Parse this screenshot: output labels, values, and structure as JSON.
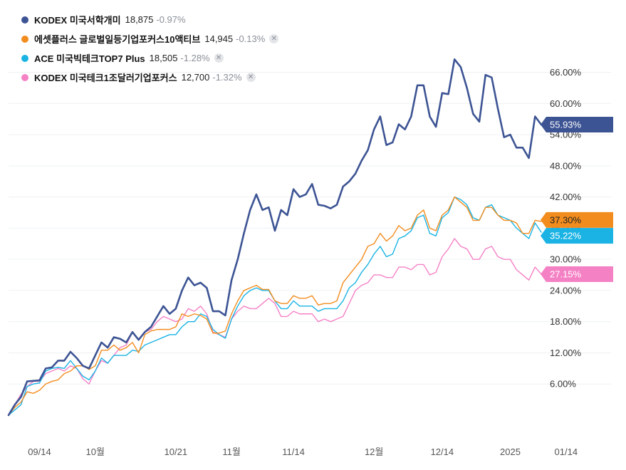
{
  "legend": [
    {
      "name": "KODEX 미국서학개미",
      "price": "18,875",
      "change": "-0.97%",
      "color": "#3d5494",
      "removable": false
    },
    {
      "name": "에셋플러스 글로벌일등기업포커스10액티브",
      "price": "14,945",
      "change": "-0.13%",
      "color": "#f28c1e",
      "removable": true
    },
    {
      "name": "ACE 미국빅테크TOP7 Plus",
      "price": "18,505",
      "change": "-1.28%",
      "color": "#1ab3e4",
      "removable": true
    },
    {
      "name": "KODEX 미국테크1조달러기업포커스",
      "price": "12,700",
      "change": "-1.32%",
      "color": "#f581c5",
      "removable": true
    }
  ],
  "chart_data": {
    "type": "line",
    "title": "",
    "xlabel": "",
    "ylabel": "",
    "ylim": [
      0,
      70
    ],
    "y_ticks": [
      6,
      12,
      18,
      24,
      30,
      36,
      42,
      48,
      54,
      60,
      66
    ],
    "y_tick_labels": [
      "6.00%",
      "12.00%",
      "18.00%",
      "24.00%",
      "30.00%",
      "36.00%",
      "42.00%",
      "48.00%",
      "54.00%",
      "60.00%",
      "66.00%"
    ],
    "x_tick_labels": [
      {
        "index": 5,
        "label": "09/14"
      },
      {
        "index": 14,
        "label": "10월"
      },
      {
        "index": 27,
        "label": "10/21"
      },
      {
        "index": 36,
        "label": "11월"
      },
      {
        "index": 46,
        "label": "11/14"
      },
      {
        "index": 59,
        "label": "12월"
      },
      {
        "index": 70,
        "label": "12/14"
      },
      {
        "index": 81,
        "label": "2025"
      },
      {
        "index": 90,
        "label": "01/14"
      }
    ],
    "grid": true,
    "legend_position": "top-left",
    "series": [
      {
        "name": "KODEX 미국서학개미",
        "color": "#3d5494",
        "end_label": "55.93%",
        "values": [
          0,
          2,
          3.5,
          6.5,
          6.6,
          6.7,
          9,
          9.2,
          10.5,
          10.5,
          12.2,
          11,
          9.5,
          9,
          11.5,
          14,
          13,
          15,
          14.7,
          14,
          16,
          14.5,
          16,
          17,
          19,
          21,
          19.5,
          20.5,
          24,
          26.5,
          25,
          25.5,
          24.5,
          20,
          20,
          19.2,
          26,
          30,
          35,
          39.5,
          42.5,
          39.5,
          40,
          35.5,
          39.5,
          38.5,
          43.5,
          42,
          42.5,
          44.5,
          40.5,
          40.3,
          39.8,
          40.5,
          44,
          45,
          46.5,
          49,
          51,
          55,
          57.5,
          52,
          52.5,
          56,
          55,
          57.5,
          63.5,
          63.5,
          57.5,
          55.5,
          62,
          61.8,
          68.5,
          67,
          63,
          58,
          56.5,
          65.5,
          65,
          59,
          53.5,
          54,
          51.5,
          51.5,
          49.5,
          57.5,
          55.93
        ]
      },
      {
        "name": "에셋플러스 글로벌일등기업포커스10액티브",
        "color": "#f28c1e",
        "end_label": "37.30%",
        "values": [
          0,
          1.5,
          2.5,
          4.5,
          4.2,
          4.8,
          6,
          6.5,
          6.8,
          8,
          8.5,
          9.5,
          9.5,
          8.8,
          9.5,
          12.5,
          12.5,
          13.5,
          12.5,
          13,
          14,
          12,
          15.5,
          16.2,
          16.5,
          16.5,
          16.5,
          17,
          19.5,
          19,
          19.5,
          19.2,
          18.5,
          15.8,
          15.8,
          16.2,
          19.5,
          22,
          24,
          24.5,
          25,
          24.2,
          24.2,
          22,
          21.5,
          21.5,
          23,
          22.5,
          22.5,
          23,
          21.2,
          21.5,
          21.5,
          22,
          25.5,
          27,
          28.5,
          30,
          32.5,
          33,
          35,
          33.5,
          34.5,
          36.5,
          35.5,
          36,
          38.5,
          39.5,
          36,
          35.5,
          38.5,
          39.5,
          42,
          41,
          40,
          37.5,
          37.5,
          40,
          40,
          38.5,
          37.5,
          37.5,
          37,
          35,
          35,
          37.5,
          37.3
        ]
      },
      {
        "name": "ACE 미국빅테크TOP7 Plus",
        "color": "#1ab3e4",
        "end_label": "35.22%",
        "values": [
          0,
          1,
          2,
          5.5,
          6,
          6.2,
          8.5,
          9,
          9.2,
          9,
          10.5,
          9,
          7.5,
          6.8,
          8.5,
          11,
          10,
          11.5,
          11.5,
          11.5,
          12.5,
          12.3,
          13.5,
          14,
          14.5,
          15,
          15.5,
          15.5,
          17,
          18,
          18,
          19.5,
          19,
          16.5,
          15.5,
          14.8,
          18.5,
          21,
          23,
          24,
          24.5,
          24,
          24,
          22,
          20.5,
          20.5,
          22,
          21,
          21,
          21,
          20,
          20.5,
          20.5,
          20.5,
          22,
          24.5,
          25.5,
          27.5,
          29,
          31,
          32.5,
          30.5,
          31,
          34,
          34.5,
          35.5,
          38,
          38.5,
          35,
          34.5,
          38,
          39,
          42,
          41.5,
          40.5,
          38,
          37.5,
          40,
          40.5,
          38.5,
          38,
          37.5,
          36,
          35,
          34,
          37,
          35.22
        ]
      },
      {
        "name": "KODEX 미국테크1조달러기업포커스",
        "color": "#f581c5",
        "end_label": "27.15%",
        "values": [
          0,
          2,
          4,
          5.5,
          6.5,
          6.5,
          8,
          8.5,
          9,
          8.5,
          9.5,
          9,
          7,
          6,
          8.5,
          10.5,
          10,
          11.5,
          13,
          13.5,
          16,
          14.5,
          16,
          16.5,
          18,
          19,
          18.5,
          18,
          18.5,
          20.5,
          20,
          21,
          19.5,
          16,
          15.5,
          15,
          18.5,
          20,
          21,
          20.5,
          20.5,
          21.5,
          22.5,
          21.5,
          19,
          19,
          20,
          19.5,
          19.5,
          19.5,
          18,
          18.5,
          18,
          18.5,
          19,
          21.5,
          24,
          25,
          25.5,
          27,
          27,
          26.5,
          26.5,
          28.5,
          28.5,
          28,
          29,
          29,
          27,
          27.5,
          30.5,
          32,
          34,
          32.5,
          32,
          30,
          30,
          32,
          32.5,
          30.5,
          30,
          30,
          28,
          27,
          26,
          28.5,
          27.15
        ]
      }
    ]
  }
}
